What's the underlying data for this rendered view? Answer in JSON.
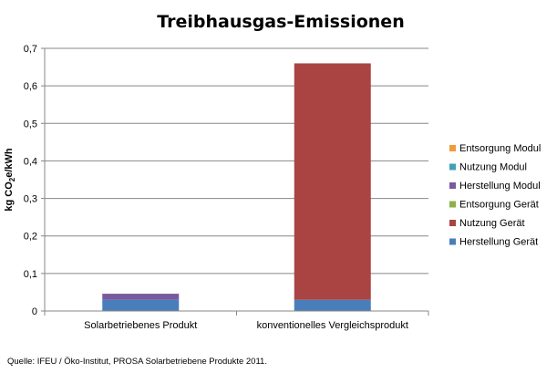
{
  "chart_data": {
    "type": "bar",
    "stacked": true,
    "title": "Treibhausgas-Emissionen",
    "ylabel": "kg CO2e/kWh",
    "ylabel_parts": {
      "before": "kg CO",
      "subscript": "2",
      "after": "e/kWh"
    },
    "ylim": [
      0,
      0.7
    ],
    "yticks": [
      "0",
      "0,1",
      "0,2",
      "0,3",
      "0,4",
      "0,5",
      "0,6",
      "0,7"
    ],
    "grid": true,
    "legend_position": "right",
    "categories": [
      "Solarbetriebenes Produkt",
      "konventionelles Vergleichsprodukt"
    ],
    "series": [
      {
        "name": "Herstellung Gerät",
        "color": "#4a7ebb",
        "values": [
          0.03,
          0.03
        ]
      },
      {
        "name": "Nutzung Gerät",
        "color": "#a94442",
        "values": [
          0,
          0.63
        ]
      },
      {
        "name": "Entsorgung Gerät",
        "color": "#8db04a",
        "values": [
          0,
          0
        ]
      },
      {
        "name": "Herstellung Modul",
        "color": "#7a5a9e",
        "values": [
          0.016,
          0
        ]
      },
      {
        "name": "Nutzung Modul",
        "color": "#3fa0b8",
        "values": [
          0,
          0
        ]
      },
      {
        "name": "Entsorgung Modul",
        "color": "#f39a3a",
        "values": [
          0,
          0
        ]
      }
    ]
  },
  "source": "Quelle: IFEU / Öko-Institut, PROSA Solarbetriebene Produkte 2011."
}
